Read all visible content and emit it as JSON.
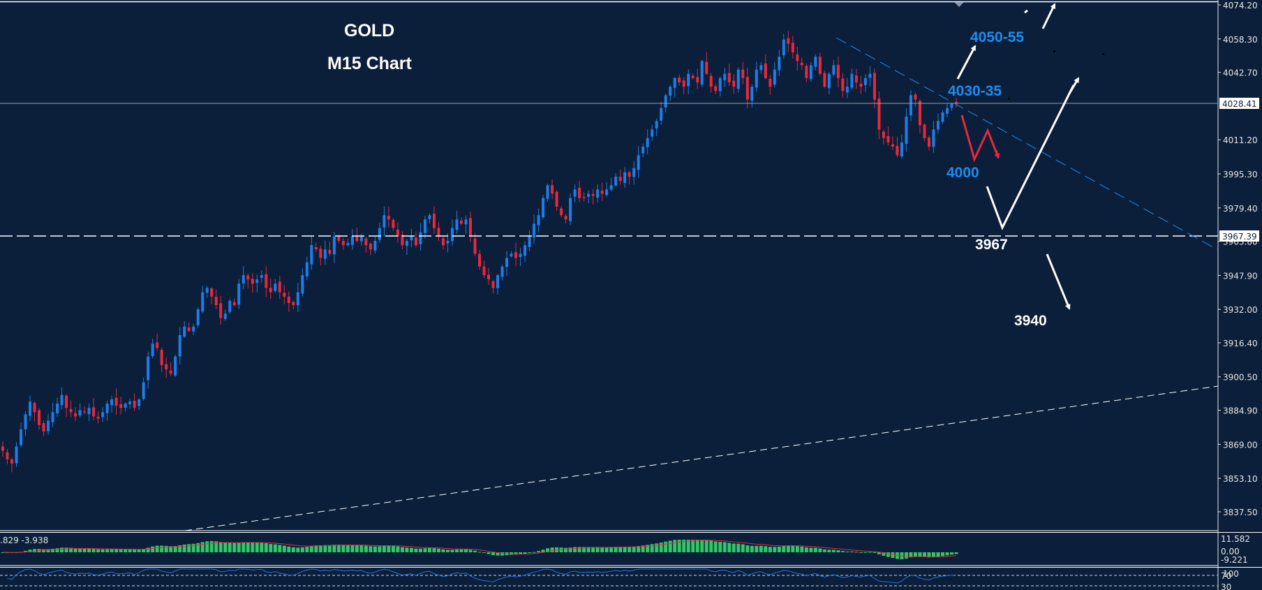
{
  "chart_data": {
    "type": "candlestick",
    "title": "GOLD",
    "subtitle": "M15 Chart",
    "symbol": "GOLD",
    "timeframe": "M15",
    "ylim": [
      3830.0,
      4076.0
    ],
    "y_ticks": [
      4074.2,
      4058.3,
      4042.7,
      4011.2,
      3995.3,
      3979.4,
      3963.8,
      3947.9,
      3932.0,
      3916.4,
      3900.5,
      3884.9,
      3869.0,
      3853.1,
      3837.5
    ],
    "y_tick_labels": [
      "4074.20",
      "4058.30",
      "4042.70",
      "4011.20",
      "3995.30",
      "3979.40",
      "3963.80",
      "3947.90",
      "3932.00",
      "3916.40",
      "3900.50",
      "3884.90",
      "3869.00",
      "3853.10",
      "3837.50"
    ],
    "current_price": {
      "value": 4028.41,
      "label": "4028.41"
    },
    "support_line": {
      "value": 3967.39,
      "label": "3967.39"
    },
    "close_path": [
      3866,
      3862,
      3860,
      3868,
      3876,
      3883,
      3889,
      3884,
      3878,
      3875,
      3880,
      3884,
      3888,
      3892,
      3886,
      3884,
      3882,
      3885,
      3884,
      3886,
      3882,
      3881,
      3884,
      3888,
      3890,
      3887,
      3886,
      3888,
      3889,
      3886,
      3890,
      3898,
      3910,
      3916,
      3914,
      3906,
      3904,
      3902,
      3910,
      3920,
      3924,
      3922,
      3924,
      3932,
      3940,
      3942,
      3938,
      3934,
      3928,
      3930,
      3936,
      3934,
      3944,
      3948,
      3946,
      3944,
      3946,
      3948,
      3942,
      3940,
      3944,
      3940,
      3938,
      3935,
      3934,
      3940,
      3948,
      3954,
      3962,
      3960,
      3956,
      3960,
      3958,
      3966,
      3964,
      3962,
      3963,
      3966,
      3964,
      3966,
      3962,
      3960,
      3964,
      3970,
      3976,
      3974,
      3970,
      3966,
      3962,
      3964,
      3966,
      3962,
      3968,
      3974,
      3976,
      3970,
      3966,
      3962,
      3964,
      3970,
      3974,
      3972,
      3974,
      3966,
      3958,
      3952,
      3948,
      3946,
      3942,
      3948,
      3952,
      3956,
      3958,
      3956,
      3958,
      3962,
      3966,
      3972,
      3976,
      3984,
      3990,
      3986,
      3980,
      3976,
      3974,
      3984,
      3988,
      3984,
      3984,
      3986,
      3985,
      3988,
      3986,
      3988,
      3990,
      3994,
      3992,
      3996,
      3994,
      3998,
      4004,
      4008,
      4012,
      4016,
      4020,
      4026,
      4032,
      4036,
      4040,
      4038,
      4036,
      4042,
      4040,
      4038,
      4048,
      4042,
      4036,
      4034,
      4040,
      4042,
      4038,
      4036,
      4044,
      4040,
      4030,
      4036,
      4044,
      4046,
      4040,
      4036,
      4044,
      4050,
      4058,
      4056,
      4052,
      4048,
      4046,
      4040,
      4046,
      4050,
      4042,
      4036,
      4042,
      4046,
      4040,
      4034,
      4036,
      4042,
      4038,
      4036,
      4040,
      4042,
      4030,
      4016,
      4012,
      4010,
      4008,
      4004,
      4010,
      4022,
      4032,
      4030,
      4018,
      4012,
      4008,
      4016,
      4020,
      4024,
      4026,
      4028,
      4028.41
    ],
    "annotations": [
      {
        "text": "4050-55",
        "color": "blue"
      },
      {
        "text": "4030-35",
        "color": "blue"
      },
      {
        "text": "4000",
        "color": "blue"
      },
      {
        "text": "3967",
        "color": "white"
      },
      {
        "text": "3940",
        "color": "white"
      }
    ],
    "indicators": {
      "macd": {
        "label": ".829 -3.938",
        "axis_labels": [
          "11.582",
          "0.00",
          "-9.221"
        ]
      },
      "rsi": {
        "axis_labels": [
          "100",
          "70",
          "30"
        ],
        "levels": [
          70,
          30
        ]
      }
    },
    "colors": {
      "background": "#0b1f3a",
      "bull": "#1e7de6",
      "bear": "#e8283c",
      "macd_hist": "#2ec866",
      "macd_signal": "#e8283c",
      "rsi_line": "#2a6ee0",
      "annotation_blue": "#1e8cf0",
      "annotation_red": "#e8283c"
    }
  },
  "labels": {
    "title": "GOLD",
    "subtitle": "M15 Chart",
    "ann_4050": "4050-55",
    "ann_4030": "4030-35",
    "ann_4000": "4000",
    "ann_3967": "3967",
    "ann_3940": "3940",
    "current_price": "4028.41",
    "support_price": "3967.39",
    "macd_values": ".829 -3.938",
    "macd_axis_top": "11.582",
    "macd_axis_zero": "0.00",
    "macd_axis_bottom": "-9.221",
    "rsi_axis_100": "100",
    "rsi_axis_70": "70",
    "rsi_axis_30": "30"
  }
}
